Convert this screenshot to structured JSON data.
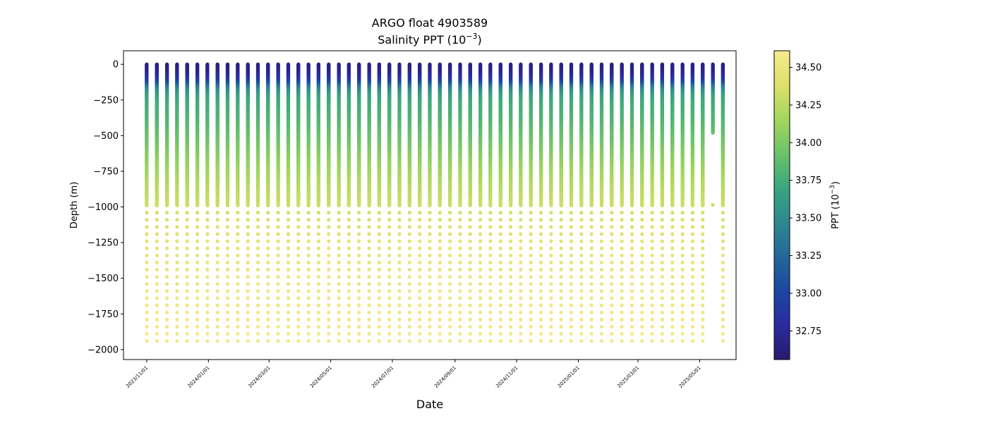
{
  "chart_data": {
    "type": "scatter",
    "title": "ARGO float 4903589",
    "subtitle": {
      "base": "Salinity PPT (10",
      "exp": "−3",
      "close": ")"
    },
    "xlabel": "Date",
    "ylabel": "Depth (m)",
    "colorbar": {
      "label": {
        "base": "PPT (10",
        "exp": "−3",
        "close": ")"
      },
      "range": [
        32.56,
        34.61
      ],
      "ticks": [
        "32.75",
        "33.00",
        "33.25",
        "33.50",
        "33.75",
        "34.00",
        "34.25",
        "34.50"
      ],
      "colormap": "haline",
      "stops": [
        "#2a1a6e",
        "#2b2aa0",
        "#1b47a0",
        "#24679a",
        "#2e8890",
        "#3aa57e",
        "#6cc26a",
        "#a4d65e",
        "#dde06a",
        "#f6ea8c"
      ]
    },
    "xlim": [
      "2023-10-09",
      "2025-06-06"
    ],
    "ylim": [
      -2070,
      95
    ],
    "grid": false,
    "x_tick_labels": [
      "2023/11/01",
      "2024/01/01",
      "2024/03/01",
      "2024/05/01",
      "2024/07/01",
      "2024/09/01",
      "2024/11/01",
      "2025/01/01",
      "2025/03/01",
      "2025/05/01"
    ],
    "y_tick_labels": [
      "0",
      "−250",
      "−500",
      "−750",
      "−1000",
      "−1250",
      "−1500",
      "−1750",
      "−2000"
    ],
    "profile_interval_days": 10,
    "profiles": [
      "2023-11-01",
      "2023-11-11",
      "2023-11-21",
      "2023-12-01",
      "2023-12-11",
      "2023-12-21",
      "2023-12-31",
      "2024-01-10",
      "2024-01-20",
      "2024-01-30",
      "2024-02-09",
      "2024-02-19",
      "2024-02-29",
      "2024-03-10",
      "2024-03-20",
      "2024-03-30",
      "2024-04-09",
      "2024-04-19",
      "2024-04-29",
      "2024-05-09",
      "2024-05-19",
      "2024-05-29",
      "2024-06-08",
      "2024-06-18",
      "2024-06-28",
      "2024-07-08",
      "2024-07-18",
      "2024-07-28",
      "2024-08-07",
      "2024-08-17",
      "2024-08-27",
      "2024-09-06",
      "2024-09-16",
      "2024-09-26",
      "2024-10-06",
      "2024-10-16",
      "2024-10-26",
      "2024-11-05",
      "2024-11-15",
      "2024-11-25",
      "2024-12-05",
      "2024-12-15",
      "2024-12-25",
      "2025-01-04",
      "2025-01-14",
      "2025-01-24",
      "2025-02-03",
      "2025-02-13",
      "2025-02-23",
      "2025-03-05",
      "2025-03-15",
      "2025-03-25",
      "2025-04-04",
      "2025-04-14",
      "2025-04-24",
      "2025-05-04",
      "2025-05-14",
      "2025-05-24"
    ],
    "partial_profiles": [
      {
        "date": "2025-05-14",
        "max_depth": -480,
        "deep_points": [
          -985
        ]
      }
    ],
    "salinity_by_depth": [
      {
        "depth": 0,
        "value": 32.65
      },
      {
        "depth": -50,
        "value": 32.7
      },
      {
        "depth": -100,
        "value": 32.85
      },
      {
        "depth": -130,
        "value": 33.05
      },
      {
        "depth": -160,
        "value": 33.35
      },
      {
        "depth": -200,
        "value": 33.6
      },
      {
        "depth": -250,
        "value": 33.72
      },
      {
        "depth": -400,
        "value": 33.82
      },
      {
        "depth": -550,
        "value": 33.95
      },
      {
        "depth": -700,
        "value": 34.1
      },
      {
        "depth": -850,
        "value": 34.22
      },
      {
        "depth": -1000,
        "value": 34.33
      },
      {
        "depth": -1250,
        "value": 34.45
      },
      {
        "depth": -1500,
        "value": 34.52
      },
      {
        "depth": -1750,
        "value": 34.56
      },
      {
        "depth": -2000,
        "value": 34.6
      }
    ]
  }
}
